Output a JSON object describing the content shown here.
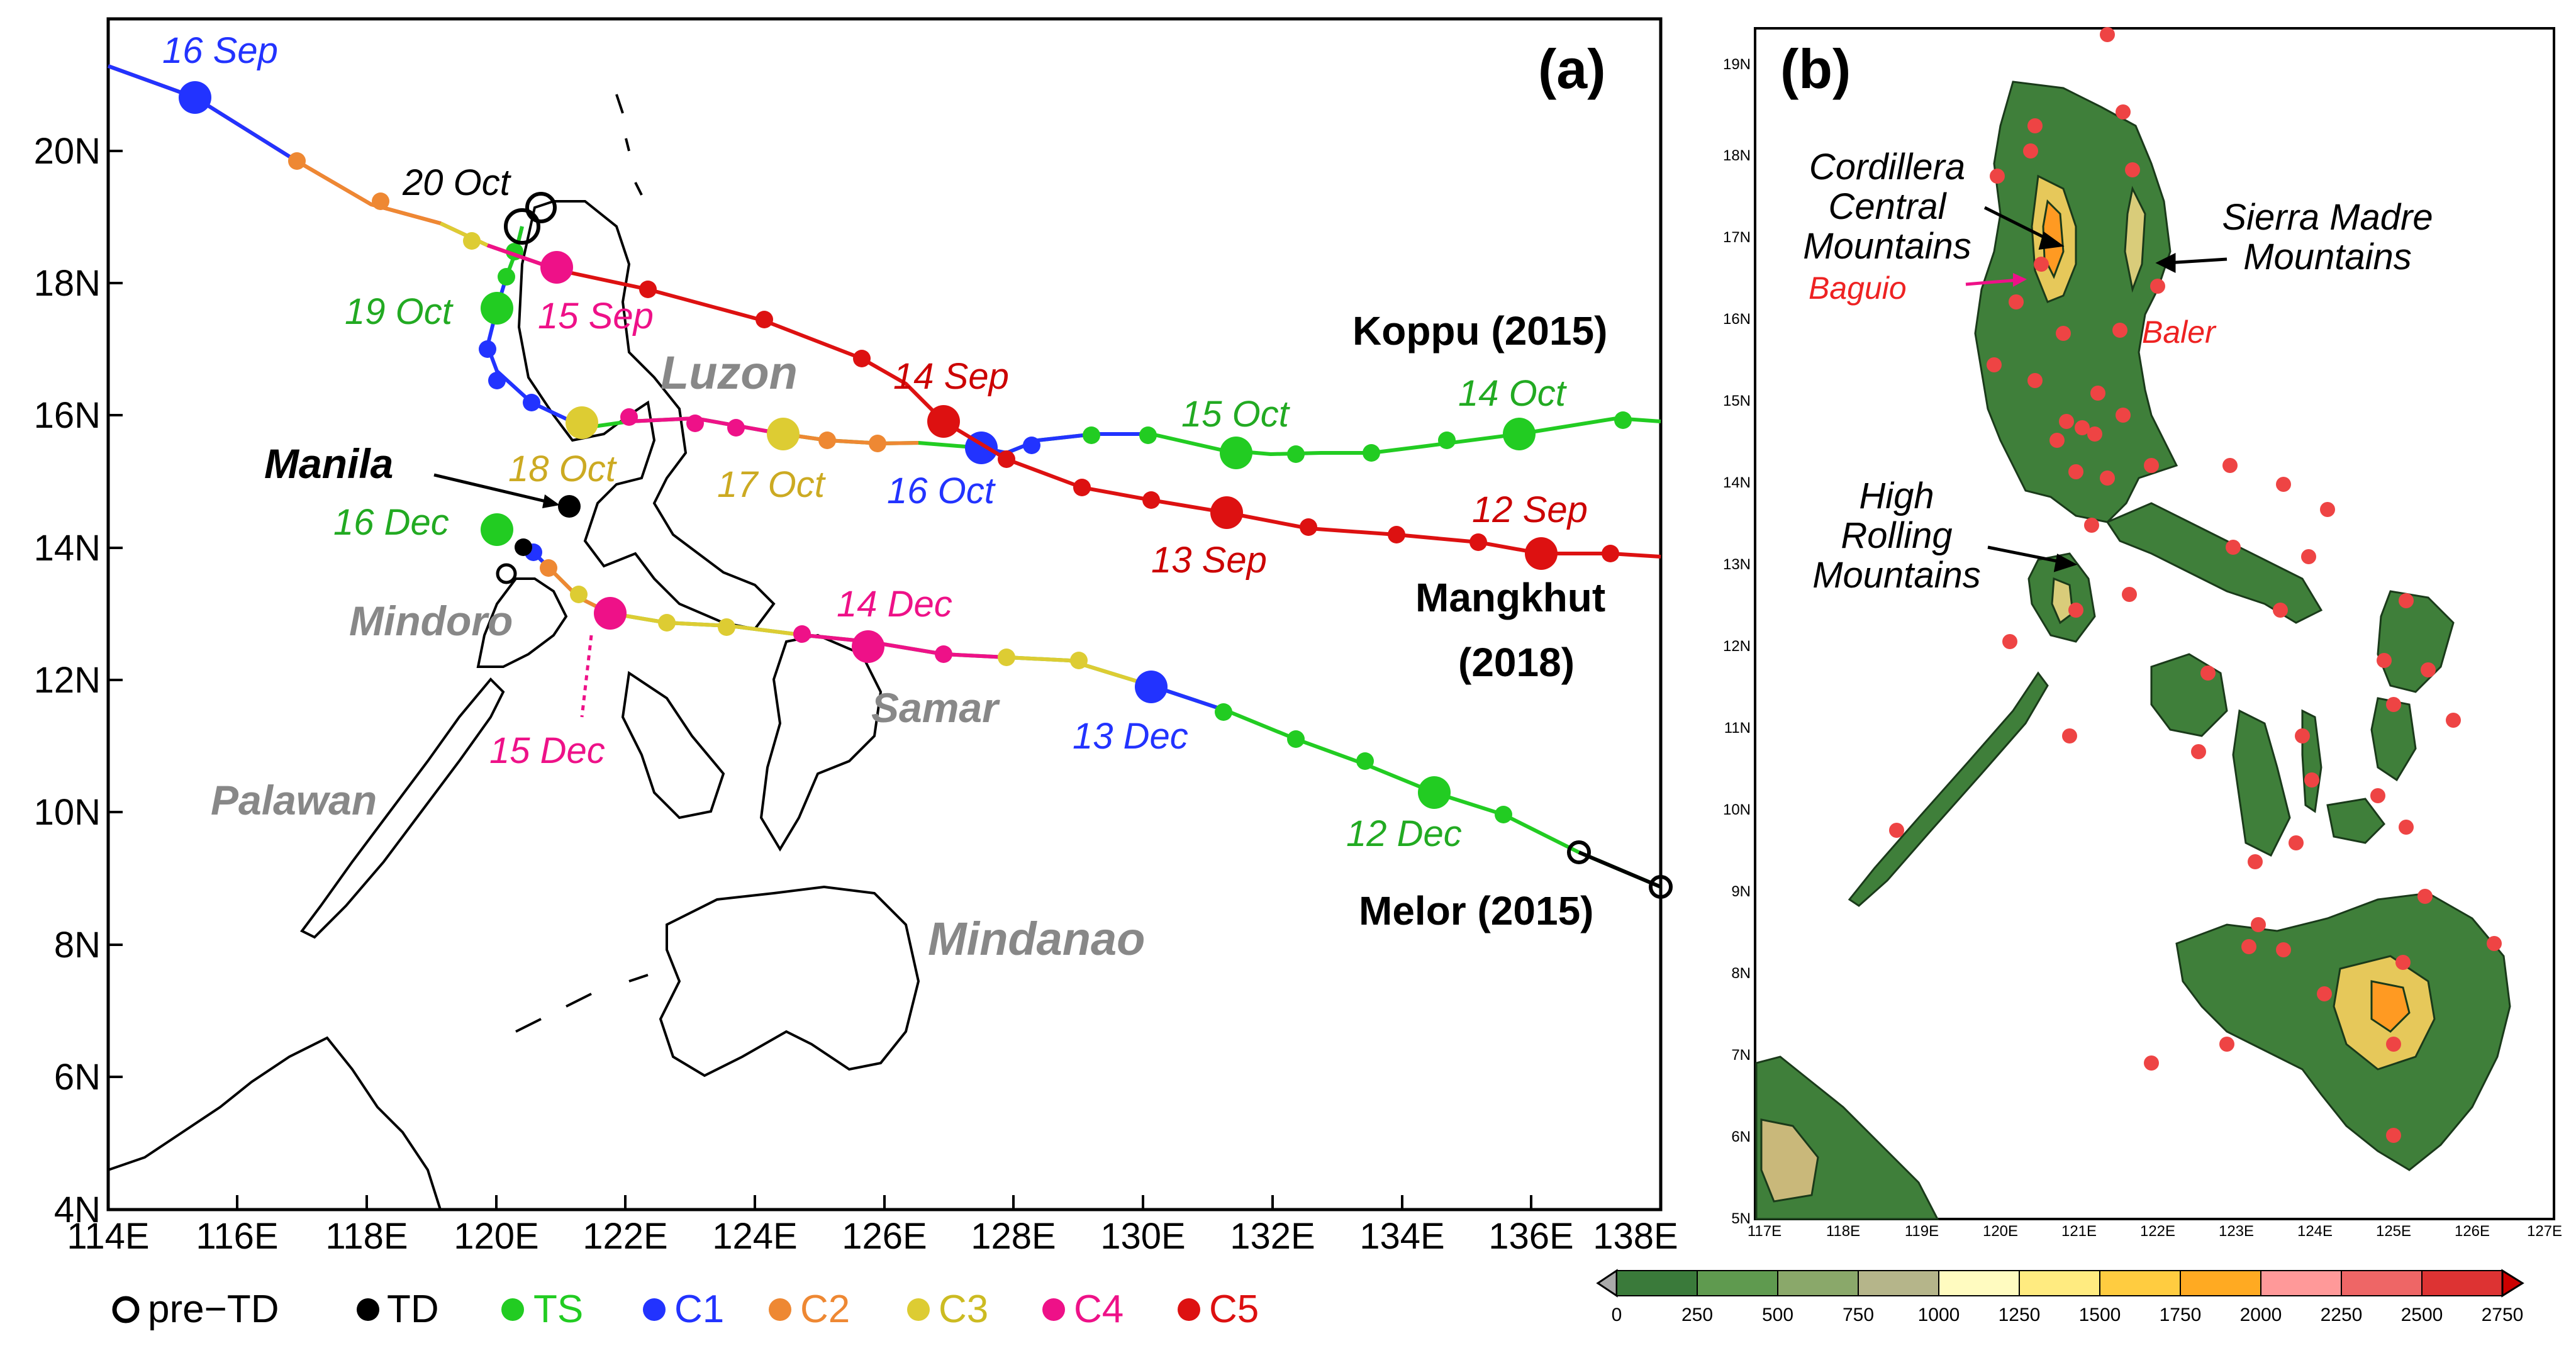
{
  "panel_a": {
    "letter": "(a)",
    "x_ticks": [
      "114E",
      "116E",
      "118E",
      "120E",
      "122E",
      "124E",
      "126E",
      "128E",
      "130E",
      "132E",
      "134E",
      "136E",
      "138E"
    ],
    "y_ticks": [
      "4N",
      "6N",
      "8N",
      "10N",
      "12N",
      "14N",
      "16N",
      "18N",
      "20N"
    ],
    "regions": {
      "luzon": "Luzon",
      "mindoro": "Mindoro",
      "palawan": "Palawan",
      "samar": "Samar",
      "mindanao": "Mindanao"
    },
    "city": "Manila",
    "storms": {
      "koppu": "Koppu (2015)",
      "mangkhut1": "Mangkhut",
      "mangkhut2": "(2018)",
      "melor": "Melor (2015)"
    },
    "dates": {
      "sep16": "16 Sep",
      "sep15": "15 Sep",
      "sep14": "14 Sep",
      "sep13": "13 Sep",
      "sep12": "12 Sep",
      "oct20": "20 Oct",
      "oct19": "19 Oct",
      "oct18": "18 Oct",
      "oct17": "17 Oct",
      "oct16": "16 Oct",
      "oct15": "15 Oct",
      "oct14": "14 Oct",
      "dec16": "16 Dec",
      "dec15": "15 Dec",
      "dec14": "14 Dec",
      "dec13": "13 Dec",
      "dec12": "12 Dec"
    },
    "legend": [
      {
        "label": "pre−TD",
        "color": "#000000",
        "hollow": true
      },
      {
        "label": "TD",
        "color": "#000000",
        "hollow": false
      },
      {
        "label": "TS",
        "color": "#22cc22",
        "hollow": false
      },
      {
        "label": "C1",
        "color": "#2233ff",
        "hollow": false
      },
      {
        "label": "C2",
        "color": "#ee8833",
        "hollow": false
      },
      {
        "label": "C3",
        "color": "#ddcc33",
        "hollow": false
      },
      {
        "label": "C4",
        "color": "#ee1188",
        "hollow": false
      },
      {
        "label": "C5",
        "color": "#dd1111",
        "hollow": false
      }
    ],
    "colors": {
      "TS": "#22cc22",
      "C1": "#2233ff",
      "C2": "#ee8833",
      "C3": "#ddcc33",
      "C4": "#ee1188",
      "C5": "#dd1111",
      "TD": "#000000"
    }
  },
  "panel_b": {
    "letter": "(b)",
    "x_ticks": [
      "117E",
      "118E",
      "119E",
      "120E",
      "121E",
      "122E",
      "123E",
      "124E",
      "125E",
      "126E",
      "127E"
    ],
    "y_ticks": [
      "5N",
      "6N",
      "7N",
      "8N",
      "9N",
      "10N",
      "11N",
      "12N",
      "13N",
      "14N",
      "15N",
      "16N",
      "17N",
      "18N",
      "19N"
    ],
    "labels": {
      "cordillera1": "Cordillera",
      "cordillera2": "Central",
      "cordillera3": "Mountains",
      "sierra1": "Sierra Madre",
      "sierra2": "Mountains",
      "high1": "High",
      "high2": "Rolling",
      "high3": "Mountains",
      "baguio": "Baguio",
      "baler": "Baler"
    },
    "colorbar_ticks": [
      "0",
      "250",
      "500",
      "750",
      "1000",
      "1250",
      "1500",
      "1750",
      "2000",
      "2250",
      "2500",
      "2750"
    ],
    "colorbar_colors": [
      "#3a7a3a",
      "#5f9a4f",
      "#8aa86a",
      "#b5b58a",
      "#fffbc0",
      "#ffeb80",
      "#ffcc40",
      "#ffaa22",
      "#ff9999",
      "#ee6666",
      "#dd3333",
      "#cc0000"
    ]
  }
}
